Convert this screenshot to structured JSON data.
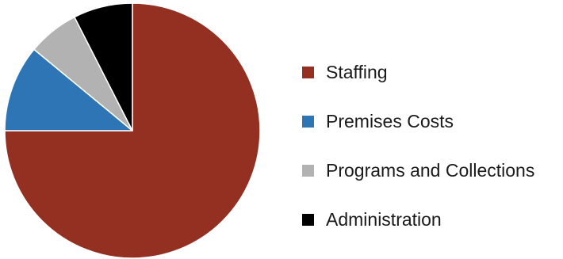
{
  "chart_data": {
    "type": "pie",
    "title": "",
    "slices": [
      {
        "label": "Staffing",
        "value": 75,
        "color": "#943022"
      },
      {
        "label": "Premises Costs",
        "value": 11,
        "color": "#2e75b6"
      },
      {
        "label": "Programs and Collections",
        "value": 6.5,
        "color": "#b2b2b2"
      },
      {
        "label": "Administration",
        "value": 7.5,
        "color": "#000000"
      }
    ],
    "start_angle_deg": 0,
    "direction": "clockwise",
    "legend_position": "right"
  }
}
